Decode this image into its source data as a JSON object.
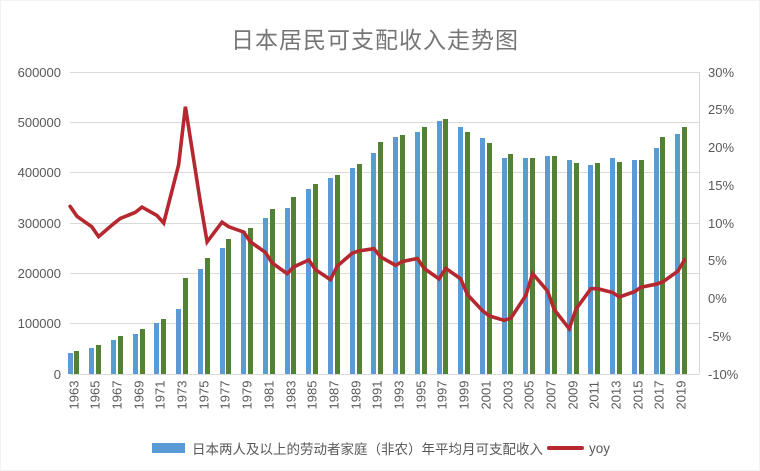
{
  "title": "日本居民可支配收入走势图",
  "legend": {
    "bar_label": "日本两人及以上的劳动者家庭（非农）年平均月可支配收入",
    "line_label": "yoy"
  },
  "colors": {
    "bar_odd_year": "#5B9BD5",
    "bar_even_year": "#548235",
    "line": "#B5282F",
    "grid": "#D9D9D9",
    "axis_text": "#595959",
    "title_text": "#767676",
    "background": "#FFFFFF"
  },
  "axes": {
    "left_ticks": [
      "600000",
      "500000",
      "400000",
      "300000",
      "200000",
      "100000",
      "0"
    ],
    "right_ticks": [
      "30%",
      "25%",
      "20%",
      "15%",
      "10%",
      "5%",
      "0%",
      "-5%",
      "-10%"
    ],
    "x_ticks": [
      "1963",
      "1965",
      "1967",
      "1969",
      "1971",
      "1973",
      "1975",
      "1977",
      "1979",
      "1981",
      "1983",
      "1985",
      "1987",
      "1989",
      "1991",
      "1993",
      "1995",
      "1997",
      "1999",
      "2001",
      "2003",
      "2005",
      "2007",
      "2009",
      "2011",
      "2013",
      "2015",
      "2017",
      "2019"
    ]
  },
  "chart_data": {
    "type": "bar+line combo",
    "title": "日本居民可支配收入走势图",
    "grid": "horizontal gridlines on",
    "legend_position": "bottom",
    "left_axis": {
      "label": "",
      "min": 0,
      "max": 600000,
      "step": 100000
    },
    "right_axis": {
      "label": "yoy",
      "min": -10,
      "max": 30,
      "step": 5,
      "unit": "%"
    },
    "x_label_note": "labels every 2 years, bars drawn yearly in blue/green alternating pairs",
    "x": [
      1963,
      1964,
      1965,
      1966,
      1967,
      1968,
      1969,
      1970,
      1971,
      1972,
      1973,
      1974,
      1975,
      1976,
      1977,
      1978,
      1979,
      1980,
      1981,
      1982,
      1983,
      1984,
      1985,
      1986,
      1987,
      1988,
      1989,
      1990,
      1991,
      1992,
      1993,
      1994,
      1995,
      1996,
      1997,
      1998,
      1999,
      2000,
      2001,
      2002,
      2003,
      2004,
      2005,
      2006,
      2007,
      2008,
      2009,
      2010,
      2011,
      2012,
      2013,
      2014,
      2015,
      2016,
      2017,
      2018,
      2019,
      2020
    ],
    "series": [
      {
        "name": "日本两人及以上的劳动者家庭（非农）年平均月可支配收入",
        "type": "bar",
        "axis": "left",
        "color_note": "odd years blue #5B9BD5, even years green #548235",
        "values": [
          41000,
          46000,
          51000,
          57000,
          68000,
          75000,
          80000,
          90000,
          102000,
          110000,
          130000,
          190000,
          209000,
          230000,
          250000,
          268000,
          284000,
          291000,
          310000,
          328000,
          329000,
          352000,
          368000,
          378000,
          389000,
          396000,
          409000,
          418000,
          440000,
          460000,
          470000,
          475000,
          480000,
          490000,
          502000,
          506000,
          491000,
          480000,
          469000,
          458000,
          429000,
          438000,
          429000,
          429000,
          434000,
          434000,
          425000,
          420000,
          416000,
          420000,
          429000,
          422000,
          425000,
          425000,
          449000,
          471000,
          477000,
          490000
        ]
      },
      {
        "name": "yoy",
        "type": "line",
        "axis": "right",
        "unit": "%",
        "values": [
          12.2,
          10.9,
          9.5,
          8.2,
          9.9,
          10.6,
          11.4,
          12.1,
          11.0,
          10.0,
          17.7,
          25.4,
          12.8,
          7.5,
          10.1,
          9.5,
          8.8,
          7.5,
          6.1,
          4.7,
          3.3,
          4.2,
          5.1,
          3.8,
          2.5,
          4.3,
          6.0,
          6.3,
          6.6,
          5.5,
          4.4,
          4.9,
          5.3,
          4.0,
          2.6,
          4.0,
          2.6,
          0.5,
          -1.6,
          -2.3,
          -2.9,
          -2.6,
          0.4,
          3.3,
          1.0,
          -1.5,
          -4.0,
          -1.4,
          1.3,
          1.3,
          0.8,
          0.2,
          0.9,
          1.5,
          1.9,
          2.2,
          3.6,
          5.1
        ]
      }
    ]
  }
}
